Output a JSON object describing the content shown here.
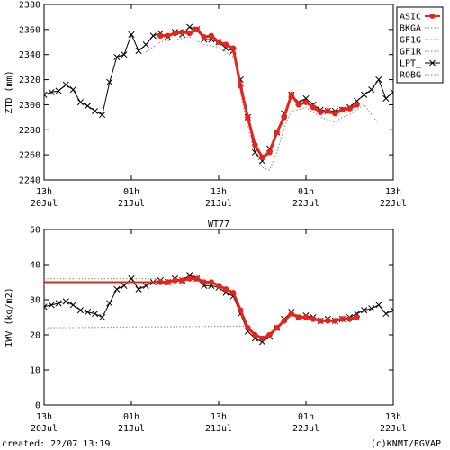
{
  "footer": {
    "created": "created: 22/07 13:19",
    "credit": "(c)KNMI/EGVAP"
  },
  "colors": {
    "asic": "#e8231c",
    "asic_light": "#f08a84",
    "lpt": "#000000",
    "ref_gray": "#9a9a9a",
    "frame": "#000000"
  },
  "chart_data": [
    {
      "type": "line",
      "title": "",
      "xlabel": "",
      "ylabel": "ZTD (mm)",
      "ylim": [
        2240,
        2380
      ],
      "yticks": [
        2240,
        2260,
        2280,
        2300,
        2320,
        2340,
        2360,
        2380
      ],
      "xlim_hours": [
        0,
        48
      ],
      "xticks": [
        {
          "hour": 0,
          "line1": "13h",
          "line2": "20Jul"
        },
        {
          "hour": 12,
          "line1": "01h",
          "line2": "21Jul"
        },
        {
          "hour": 24,
          "line1": "13h",
          "line2": "21Jul"
        },
        {
          "hour": 36,
          "line1": "01h",
          "line2": "22Jul"
        },
        {
          "hour": 48,
          "line1": "13h",
          "line2": "22Jul"
        }
      ],
      "legend_position": "right",
      "legend": [
        "ASIC",
        "BKGA",
        "GF1G",
        "GF1R",
        "LPT_",
        "ROBG"
      ],
      "series": [
        {
          "name": "LPT_",
          "style": "black-x",
          "points": [
            [
              0,
              2308
            ],
            [
              1,
              2310
            ],
            [
              2,
              2311
            ],
            [
              3,
              2316
            ],
            [
              4,
              2312
            ],
            [
              5,
              2302
            ],
            [
              6,
              2299
            ],
            [
              7,
              2295
            ],
            [
              8,
              2292
            ],
            [
              9,
              2318
            ],
            [
              10,
              2338
            ],
            [
              11,
              2340
            ],
            [
              12,
              2356
            ],
            [
              13,
              2343
            ],
            [
              14,
              2348
            ],
            [
              15,
              2355
            ],
            [
              16,
              2357
            ],
            [
              17,
              2354
            ],
            [
              18,
              2358
            ],
            [
              19,
              2356
            ],
            [
              20,
              2362
            ],
            [
              21,
              2360
            ],
            [
              22,
              2352
            ],
            [
              23,
              2352
            ],
            [
              24,
              2350
            ],
            [
              25,
              2345
            ],
            [
              26,
              2343
            ],
            [
              27,
              2320
            ],
            [
              28,
              2290
            ],
            [
              29,
              2262
            ],
            [
              30,
              2255
            ],
            [
              31,
              2265
            ],
            [
              32,
              2278
            ],
            [
              33,
              2293
            ],
            [
              34,
              2308
            ],
            [
              35,
              2302
            ],
            [
              36,
              2305
            ],
            [
              37,
              2300
            ],
            [
              38,
              2296
            ],
            [
              39,
              2295
            ],
            [
              40,
              2295
            ],
            [
              41,
              2296
            ],
            [
              42,
              2298
            ],
            [
              43,
              2303
            ],
            [
              44,
              2308
            ],
            [
              45,
              2312
            ],
            [
              46,
              2320
            ],
            [
              47,
              2305
            ],
            [
              48,
              2310
            ]
          ]
        },
        {
          "name": "ASIC",
          "style": "red-dots",
          "points": [
            [
              16,
              2355
            ],
            [
              17,
              2355
            ],
            [
              18,
              2357
            ],
            [
              19,
              2358
            ],
            [
              20,
              2357
            ],
            [
              21,
              2360
            ],
            [
              22,
              2354
            ],
            [
              23,
              2355
            ],
            [
              24,
              2350
            ],
            [
              25,
              2348
            ],
            [
              26,
              2345
            ],
            [
              27,
              2315
            ],
            [
              28,
              2290
            ],
            [
              29,
              2268
            ],
            [
              30,
              2258
            ],
            [
              31,
              2262
            ],
            [
              32,
              2278
            ],
            [
              33,
              2290
            ],
            [
              34,
              2308
            ],
            [
              35,
              2300
            ],
            [
              36,
              2302
            ],
            [
              37,
              2298
            ],
            [
              38,
              2294
            ],
            [
              39,
              2295
            ],
            [
              40,
              2293
            ],
            [
              41,
              2296
            ],
            [
              42,
              2297
            ],
            [
              43,
              2300
            ]
          ]
        },
        {
          "name": "BKGA",
          "style": "gray-dotted",
          "points": [
            [
              27,
              2310
            ],
            [
              28,
              2282
            ],
            [
              29,
              2262
            ],
            [
              30,
              2250
            ],
            [
              31,
              2248
            ],
            [
              32,
              2262
            ],
            [
              33,
              2282
            ],
            [
              34,
              2295
            ],
            [
              35,
              2296
            ],
            [
              36,
              2298
            ],
            [
              37,
              2294
            ],
            [
              38,
              2290
            ],
            [
              39,
              2288
            ],
            [
              40,
              2286
            ],
            [
              41,
              2290
            ],
            [
              42,
              2292
            ],
            [
              43,
              2296
            ],
            [
              44,
              2300
            ],
            [
              45,
              2292
            ],
            [
              46,
              2285
            ]
          ]
        },
        {
          "name": "GF1G",
          "style": "gray-dotted",
          "points": [
            [
              14,
              2342
            ],
            [
              16,
              2350
            ],
            [
              18,
              2352
            ],
            [
              20,
              2354
            ],
            [
              22,
              2348
            ],
            [
              24,
              2346
            ],
            [
              26,
              2338
            ]
          ]
        }
      ]
    },
    {
      "type": "line",
      "title": "WT77",
      "xlabel": "",
      "ylabel": "IWV (kg/m2)",
      "ylim": [
        0,
        50
      ],
      "yticks": [
        0,
        10,
        20,
        30,
        40,
        50
      ],
      "xlim_hours": [
        0,
        48
      ],
      "xticks": [
        {
          "hour": 0,
          "line1": "13h",
          "line2": "20Jul"
        },
        {
          "hour": 12,
          "line1": "01h",
          "line2": "21Jul"
        },
        {
          "hour": 24,
          "line1": "13h",
          "line2": "21Jul"
        },
        {
          "hour": 36,
          "line1": "01h",
          "line2": "22Jul"
        },
        {
          "hour": 48,
          "line1": "13h",
          "line2": "22Jul"
        }
      ],
      "series": [
        {
          "name": "LPT_",
          "style": "black-x",
          "points": [
            [
              0,
              28
            ],
            [
              1,
              28.5
            ],
            [
              2,
              29
            ],
            [
              3,
              29.5
            ],
            [
              4,
              28.5
            ],
            [
              5,
              27
            ],
            [
              6,
              26.5
            ],
            [
              7,
              26
            ],
            [
              8,
              25
            ],
            [
              9,
              29
            ],
            [
              10,
              33
            ],
            [
              11,
              34
            ],
            [
              12,
              36
            ],
            [
              13,
              33
            ],
            [
              14,
              34
            ],
            [
              15,
              35
            ],
            [
              16,
              35.5
            ],
            [
              17,
              35
            ],
            [
              18,
              36
            ],
            [
              19,
              35.5
            ],
            [
              20,
              37
            ],
            [
              21,
              36
            ],
            [
              22,
              34
            ],
            [
              23,
              34
            ],
            [
              24,
              33.5
            ],
            [
              25,
              32
            ],
            [
              26,
              31
            ],
            [
              27,
              26
            ],
            [
              28,
              21
            ],
            [
              29,
              19
            ],
            [
              30,
              18
            ],
            [
              31,
              19.5
            ],
            [
              32,
              22
            ],
            [
              33,
              24.5
            ],
            [
              34,
              26.5
            ],
            [
              35,
              25
            ],
            [
              36,
              25.5
            ],
            [
              37,
              25
            ],
            [
              38,
              24
            ],
            [
              39,
              24.5
            ],
            [
              40,
              24
            ],
            [
              41,
              24.5
            ],
            [
              42,
              25
            ],
            [
              43,
              26
            ],
            [
              44,
              27
            ],
            [
              45,
              27.5
            ],
            [
              46,
              28.5
            ],
            [
              47,
              26
            ],
            [
              48,
              27
            ]
          ]
        },
        {
          "name": "ASIC",
          "style": "red-dots",
          "points": [
            [
              16,
              35
            ],
            [
              17,
              35
            ],
            [
              18,
              35.5
            ],
            [
              19,
              35.5
            ],
            [
              20,
              36
            ],
            [
              21,
              36
            ],
            [
              22,
              35
            ],
            [
              23,
              35
            ],
            [
              24,
              34
            ],
            [
              25,
              33
            ],
            [
              26,
              32
            ],
            [
              27,
              27
            ],
            [
              28,
              22
            ],
            [
              29,
              20
            ],
            [
              30,
              19
            ],
            [
              31,
              20
            ],
            [
              32,
              22
            ],
            [
              33,
              24
            ],
            [
              34,
              26
            ],
            [
              35,
              25
            ],
            [
              36,
              25
            ],
            [
              37,
              24.5
            ],
            [
              38,
              24
            ],
            [
              39,
              24
            ],
            [
              40,
              24
            ],
            [
              41,
              24.5
            ],
            [
              42,
              24.5
            ],
            [
              43,
              25
            ]
          ]
        },
        {
          "name": "ASIC-flat",
          "style": "red-line",
          "points": [
            [
              0,
              35
            ],
            [
              16,
              35
            ]
          ]
        },
        {
          "name": "ref-upper",
          "style": "gray-dotted",
          "points": [
            [
              0,
              36
            ],
            [
              16,
              36
            ]
          ]
        },
        {
          "name": "ref-lower",
          "style": "gray-dotted",
          "points": [
            [
              0,
              22
            ],
            [
              28,
              22.5
            ]
          ]
        }
      ]
    }
  ]
}
